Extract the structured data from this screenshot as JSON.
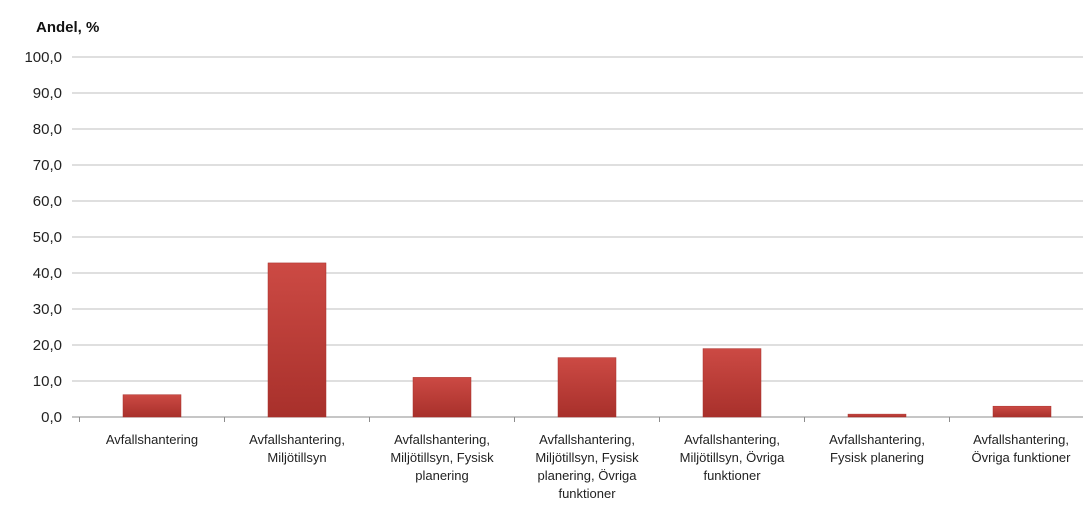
{
  "chart_data": {
    "type": "bar",
    "ylabel": "Andel, %",
    "ylim": [
      0,
      100
    ],
    "yticks": [
      "0,0",
      "10,0",
      "20,0",
      "30,0",
      "40,0",
      "50,0",
      "60,0",
      "70,0",
      "80,0",
      "90,0",
      "100,0"
    ],
    "grid": true,
    "categories": [
      "Avfallshantering",
      "Avfallshantering, Miljötillsyn",
      "Avfallshantering, Miljötillsyn, Fysisk planering",
      "Avfallshantering, Miljötillsyn, Fysisk planering, Övriga funktioner",
      "Avfallshantering, Miljötillsyn, Övriga funktioner",
      "Avfallshantering, Fysisk planering",
      "Avfallshantering, Övriga funktioner"
    ],
    "category_lines": [
      [
        "Avfallshantering"
      ],
      [
        "Avfallshantering,",
        "Miljötillsyn"
      ],
      [
        "Avfallshantering,",
        "Miljötillsyn, Fysisk",
        "planering"
      ],
      [
        "Avfallshantering,",
        "Miljötillsyn, Fysisk",
        "planering, Övriga",
        "funktioner"
      ],
      [
        "Avfallshantering,",
        "Miljötillsyn, Övriga",
        "funktioner"
      ],
      [
        "Avfallshantering,",
        "Fysisk planering"
      ],
      [
        "Avfallshantering,",
        "Övriga funktioner"
      ]
    ],
    "values": [
      6.2,
      42.8,
      11.0,
      16.5,
      19.0,
      0.8,
      3.0
    ],
    "colors": {
      "bar": "#cc4a44",
      "bar_dark": "#a8302b",
      "grid": "#bfbfbf",
      "axis": "#8c8c8c"
    }
  }
}
